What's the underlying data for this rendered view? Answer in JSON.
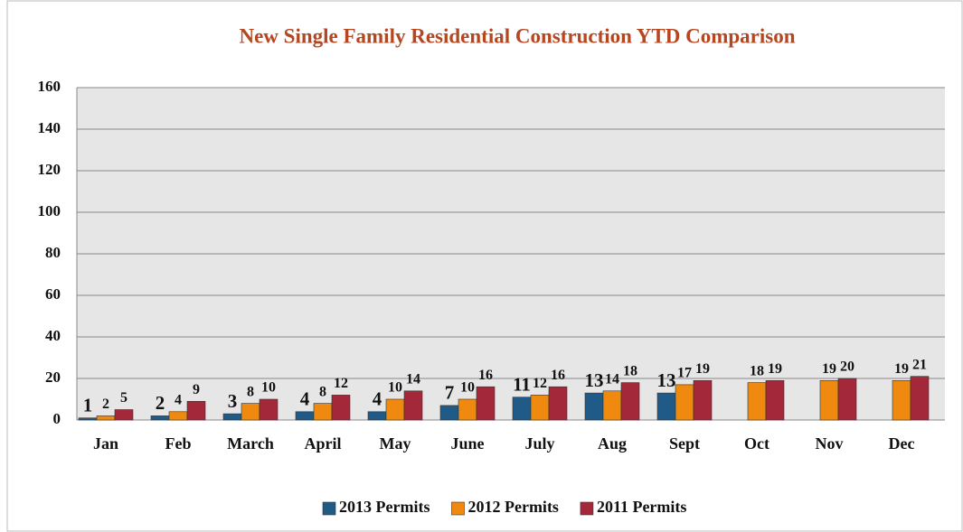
{
  "chart_data": {
    "type": "bar",
    "title": "New Single Family Residential Construction YTD Comparison",
    "categories": [
      "Jan",
      "Feb",
      "March",
      "April",
      "May",
      "June",
      "July",
      "Aug",
      "Sept",
      "Oct",
      "Nov",
      "Dec"
    ],
    "series": [
      {
        "name": "2013 Permits",
        "color": "#1f5b86",
        "values": [
          1,
          2,
          3,
          4,
          4,
          7,
          11,
          13,
          13,
          null,
          null,
          null
        ]
      },
      {
        "name": "2012 Permits",
        "color": "#f0890f",
        "values": [
          2,
          4,
          8,
          8,
          10,
          10,
          12,
          14,
          17,
          18,
          19,
          19
        ]
      },
      {
        "name": "2011 Permits",
        "color": "#a3283a",
        "values": [
          5,
          9,
          10,
          12,
          14,
          16,
          16,
          18,
          19,
          19,
          20,
          21
        ]
      }
    ],
    "ylim": [
      0,
      160
    ],
    "yticks": [
      0,
      20,
      40,
      60,
      80,
      100,
      120,
      140,
      160
    ],
    "grid": true,
    "legend": "bottom"
  }
}
